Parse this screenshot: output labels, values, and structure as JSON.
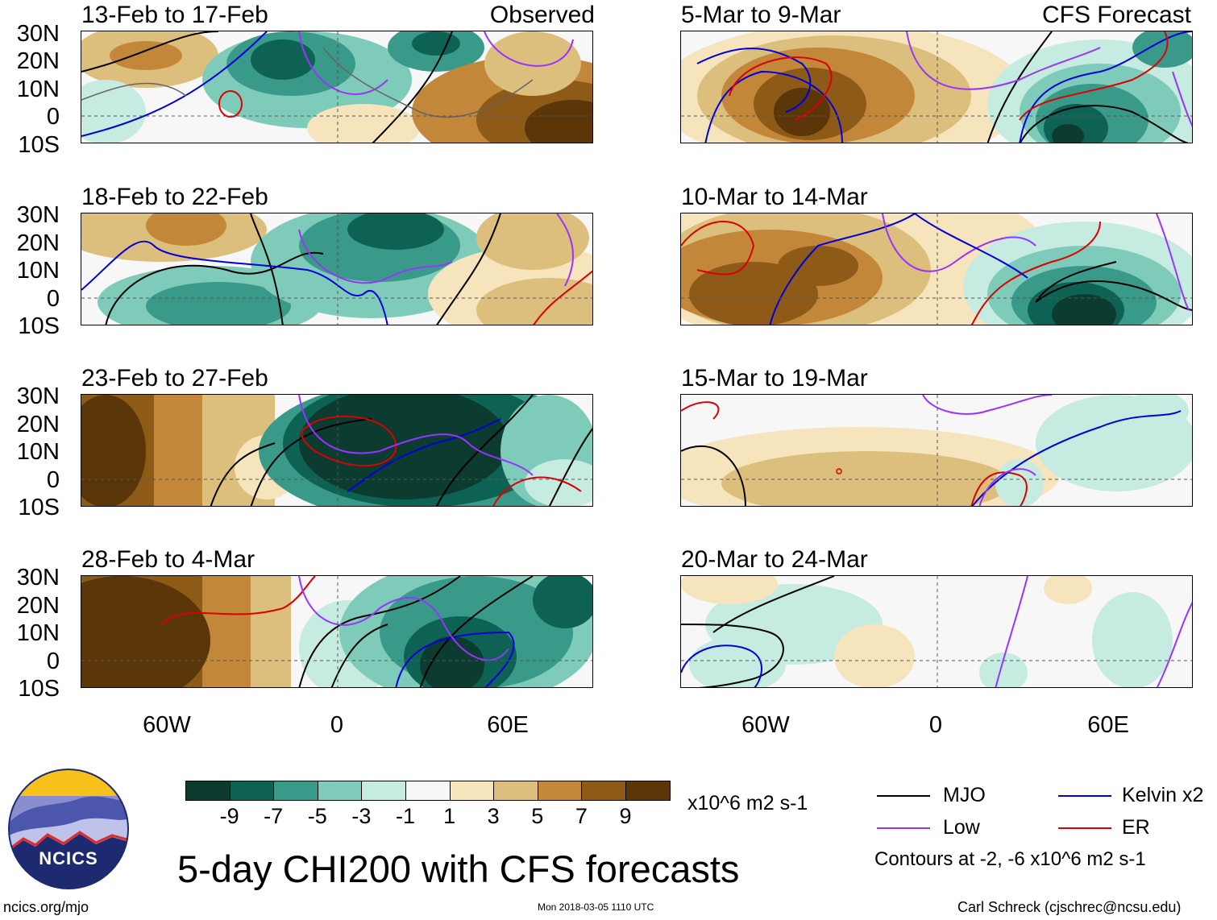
{
  "panels": [
    {
      "id": "p1",
      "title": "13-Feb to 17-Feb",
      "tag": "Observed",
      "col": "left"
    },
    {
      "id": "p2",
      "title": "18-Feb to 22-Feb",
      "tag": "",
      "col": "left"
    },
    {
      "id": "p3",
      "title": "23-Feb to 27-Feb",
      "tag": "",
      "col": "left"
    },
    {
      "id": "p4",
      "title": "28-Feb to 4-Mar",
      "tag": "",
      "col": "left"
    },
    {
      "id": "p5",
      "title": "5-Mar to 9-Mar",
      "tag": "CFS Forecast",
      "col": "right"
    },
    {
      "id": "p6",
      "title": "10-Mar to 14-Mar",
      "tag": "",
      "col": "right"
    },
    {
      "id": "p7",
      "title": "15-Mar to 19-Mar",
      "tag": "",
      "col": "right"
    },
    {
      "id": "p8",
      "title": "20-Mar to 24-Mar",
      "tag": "",
      "col": "right"
    }
  ],
  "lat_labels": [
    "30N",
    "20N",
    "10N",
    "0",
    "10S"
  ],
  "lon_labels": [
    "60W",
    "0",
    "60E"
  ],
  "colorbar": {
    "colors": [
      "#0b3c2f",
      "#0e6254",
      "#3a9a8a",
      "#7fcbba",
      "#c6ebe1",
      "#f7f7f7",
      "#f6e4bd",
      "#dcbf7c",
      "#c3873a",
      "#8d5a17",
      "#5a3609"
    ],
    "labels": [
      "-9",
      "-7",
      "-5",
      "-3",
      "-1",
      "1",
      "3",
      "5",
      "7",
      "9"
    ],
    "units": "x10^6 m2 s-1"
  },
  "legend": {
    "items": [
      {
        "label": "MJO",
        "color": "#000000"
      },
      {
        "label": "Kelvin x2",
        "color": "#0000dd"
      },
      {
        "label": "Low",
        "color": "#9933ff"
      },
      {
        "label": "ER",
        "color": "#dd0000"
      }
    ],
    "note": "Contours at -2, -6 x10^6 m2 s-1"
  },
  "main_title": "5-day CHI200 with CFS forecasts",
  "logo_text": "NCICS",
  "footer": {
    "left": "ncics.org/mjo",
    "center": "Mon 2018-03-05 1110 UTC",
    "right": "Carl Schreck (cjschrec@ncsu.edu)"
  }
}
